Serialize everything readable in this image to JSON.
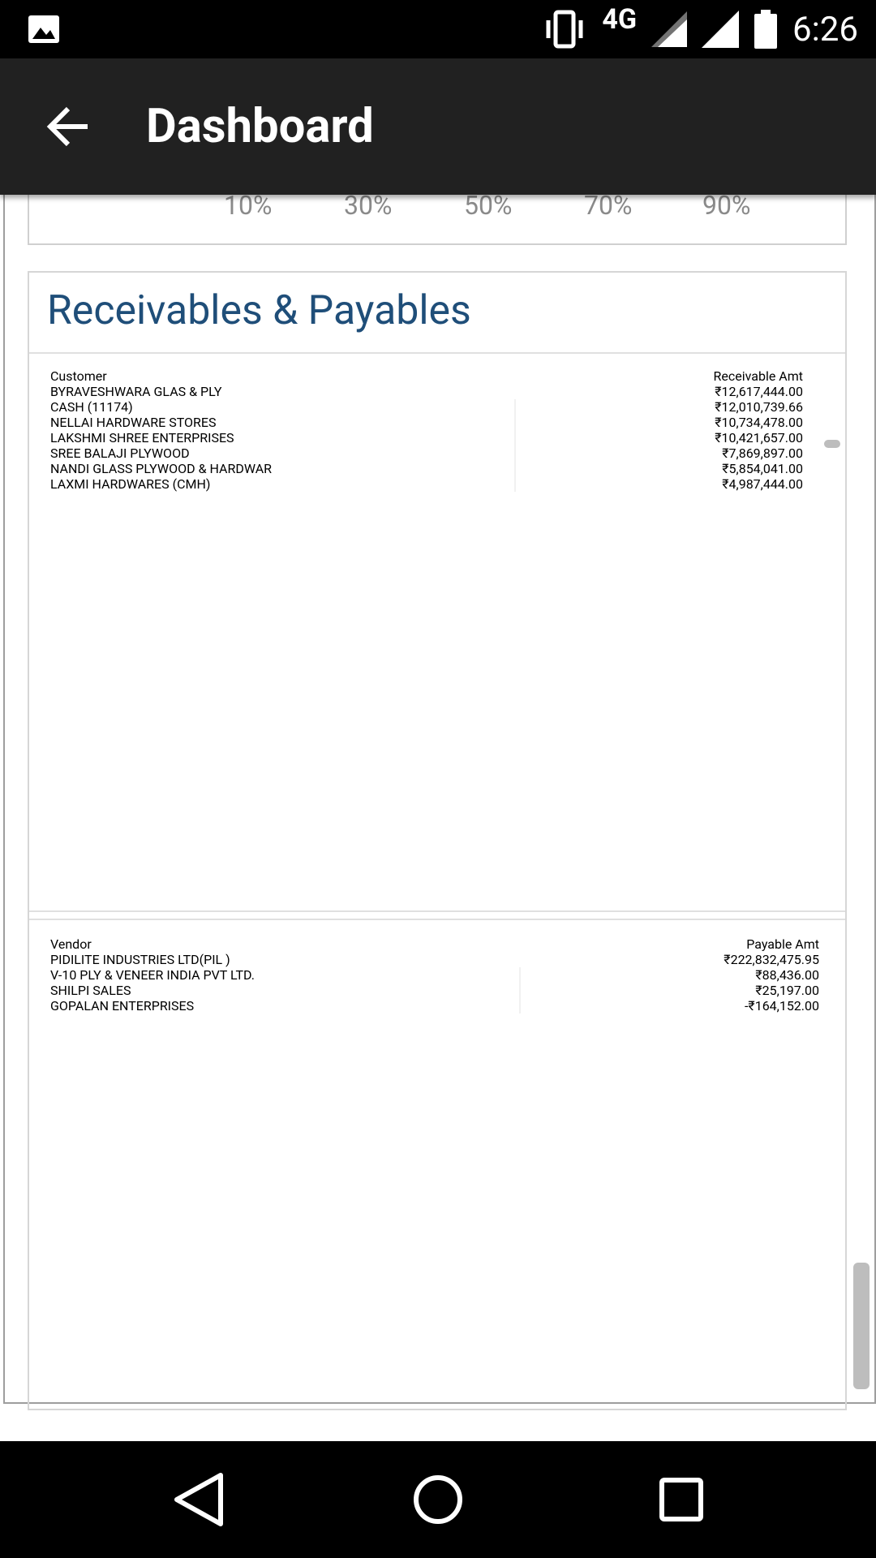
{
  "status_bar": {
    "time": "6:26",
    "network": "4G"
  },
  "app_bar": {
    "title": "Dashboard"
  },
  "chart_axis": {
    "ticks": [
      "10%",
      "30%",
      "50%",
      "70%",
      "90%"
    ]
  },
  "section": {
    "title": "Receivables & Payables"
  },
  "receivables": {
    "headers": [
      "Customer",
      "Receivable Amt"
    ],
    "rows": [
      {
        "name": "BYRAVESHWARA GLAS & PLY",
        "amount": "₹12,617,444.00"
      },
      {
        "name": "CASH (11174)",
        "amount": "₹12,010,739.66"
      },
      {
        "name": "NELLAI HARDWARE STORES",
        "amount": "₹10,734,478.00"
      },
      {
        "name": "LAKSHMI SHREE ENTERPRISES",
        "amount": "₹10,421,657.00"
      },
      {
        "name": "SREE BALAJI PLYWOOD",
        "amount": "₹7,869,897.00"
      },
      {
        "name": "NANDI GLASS PLYWOOD & HARDWAR",
        "amount": "₹5,854,041.00"
      },
      {
        "name": "LAXMI HARDWARES (CMH)",
        "amount": "₹4,987,444.00"
      }
    ]
  },
  "payables": {
    "headers": [
      "Vendor",
      "Payable Amt"
    ],
    "rows": [
      {
        "name": "PIDILITE INDUSTRIES LTD(PIL )",
        "amount": "₹222,832,475.95"
      },
      {
        "name": "V-10 PLY & VENEER INDIA PVT LTD.",
        "amount": "₹88,436.00"
      },
      {
        "name": "SHILPI SALES",
        "amount": "₹25,197.00"
      },
      {
        "name": "GOPALAN ENTERPRISES",
        "amount": "-₹164,152.00"
      },
      {
        "name": "",
        "amount": ""
      },
      {
        "name": "",
        "amount": ""
      }
    ]
  },
  "colors": {
    "selected_row": "#b8e2f2",
    "title_blue": "#1f4e79",
    "appbar": "#212121"
  },
  "icons": [
    "image-icon",
    "vibrate-icon",
    "signal-icon",
    "battery-icon",
    "back-arrow-icon",
    "nav-back-icon",
    "nav-home-icon",
    "nav-recents-icon"
  ]
}
